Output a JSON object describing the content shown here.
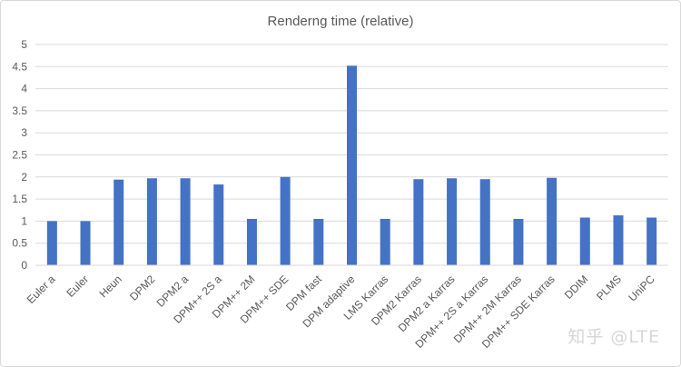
{
  "chart_data": {
    "type": "bar",
    "title": "Renderng time (relative)",
    "xlabel": "",
    "ylabel": "",
    "ylim": [
      0,
      5
    ],
    "yticks": [
      "0",
      "0.5",
      "1",
      "1.5",
      "2",
      "2.5",
      "3",
      "3.5",
      "4",
      "4.5",
      "5"
    ],
    "grid": true,
    "legend": "none",
    "bar_color": "#4472C4",
    "grid_color": "#d9d9d9",
    "categories": [
      "Euler a",
      "Euler",
      "Heun",
      "DPM2",
      "DPM2 a",
      "DPM++ 2S a",
      "DPM++ 2M",
      "DPM++ SDE",
      "DPM fast",
      "DPM adaptive",
      "LMS Karras",
      "DPM2 Karras",
      "DPM2 a Karras",
      "DPM++ 2S a Karras",
      "DPM++ 2M Karras",
      "DPM++ SDE Karras",
      "DDIM",
      "PLMS",
      "UniPC"
    ],
    "values": [
      1.0,
      1.0,
      1.94,
      1.97,
      1.97,
      1.83,
      1.05,
      2.0,
      1.05,
      4.52,
      1.05,
      1.95,
      1.97,
      1.95,
      1.05,
      1.98,
      1.08,
      1.13,
      1.08
    ]
  },
  "watermark": "知乎 @LTE"
}
